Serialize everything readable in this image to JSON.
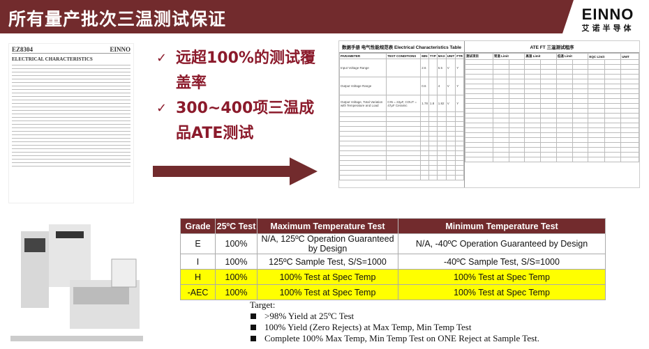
{
  "header": {
    "title": "所有量产批次三温测试保证",
    "logo_en": "EINNO",
    "logo_cn": "艾诺半导体",
    "color": "#722b2d"
  },
  "datasheet_left": {
    "part": "EZ8304",
    "brand": "EINNO",
    "heading": "ELECTRICAL CHARACTERISTICS"
  },
  "datasheet_right": {
    "left_title": "数据手册 电气性能规范表 Electrical Characteristics Table",
    "left_cols": [
      "PARAMETER",
      "TEST CONDITIONS",
      "MIN",
      "TYP",
      "MAX",
      "UNIT",
      "FTR"
    ],
    "left_rows": [
      [
        "Input Voltage Range",
        "",
        "2.6",
        "",
        "5.5",
        "V",
        "Y"
      ],
      [
        "Output Voltage Range",
        "",
        "0.6",
        "",
        "4",
        "V",
        "Y"
      ],
      [
        "Output Voltage, Total Variation with Temperature and Load",
        "CIN = 22µF, COUT = 47µF Ceramic",
        "1.78",
        "1.8",
        "1.82",
        "V",
        "Y"
      ]
    ],
    "right_title": "ATE FT 三温测试程序",
    "right_cols": [
      "测试项目",
      "常温 Limit",
      "高温 Limit",
      "低温 Limit",
      "EQC Limit",
      "UNIT"
    ]
  },
  "bullets": [
    {
      "icon": "check-icon",
      "text": "远超100%的测试覆盖率"
    },
    {
      "icon": "check-icon",
      "text": "300~400项三温成品ATE测试"
    }
  ],
  "grade_table": {
    "headers": [
      "Grade",
      "25ºC Test",
      "Maximum Temperature Test",
      "Minimum Temperature Test"
    ],
    "rows": [
      [
        "E",
        "100%",
        "N/A, 125ºC Operation Guaranteed by Design",
        "N/A, -40ºC Operation Guaranteed by Design"
      ],
      [
        "I",
        "100%",
        "125ºC Sample Test, S/S=1000",
        "-40ºC Sample Test, S/S=1000"
      ],
      [
        "H",
        "100%",
        "100% Test at Spec Temp",
        "100% Test at Spec Temp"
      ],
      [
        "-AEC",
        "100%",
        "100% Test at Spec Temp",
        "100% Test at Spec Temp"
      ]
    ],
    "highlight_color": "#ffff00"
  },
  "target": {
    "label": "Target:",
    "items": [
      ">98% Yield at 25ºC Test",
      "100% Yield (Zero Rejects) at Max Temp, Min Temp Test",
      "Complete 100% Max Temp, Min Temp Test on ONE Reject at Sample Test."
    ]
  }
}
